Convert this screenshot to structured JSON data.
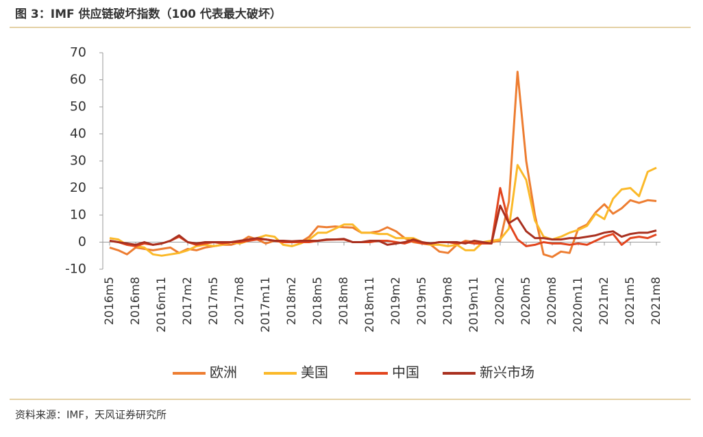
{
  "chart_data": {
    "type": "line",
    "title": "图 3：IMF 供应链破坏指数（100 代表最大破坏）",
    "source": "资料来源：IMF，天风证券研究所",
    "categories": [
      "2016m5",
      null,
      null,
      "2016m8",
      null,
      null,
      "2016m11",
      null,
      null,
      "2017m2",
      null,
      null,
      "2017m5",
      null,
      null,
      "2017m8",
      null,
      null,
      "2017m11",
      null,
      null,
      "2018m2",
      null,
      null,
      "2018m5",
      null,
      null,
      "2018m8",
      null,
      null,
      "2018m11",
      null,
      null,
      "2019m2",
      null,
      null,
      "2019m5",
      null,
      null,
      "2019m8",
      null,
      null,
      "2019m11",
      null,
      null,
      "2020m2",
      null,
      null,
      "2020m5",
      null,
      null,
      "2020m8",
      null,
      null,
      "2020m11",
      null,
      null,
      "2021m2",
      null,
      null,
      "2021m5",
      null,
      null,
      "2021m8"
    ],
    "series": [
      {
        "name": "欧洲",
        "color": "#ED7D31",
        "values": [
          -2,
          -3,
          -4.5,
          -2,
          -2.5,
          -3,
          -2.5,
          -2,
          -4,
          -2.5,
          -3,
          -2,
          -1.5,
          -1,
          -1,
          0,
          2,
          1,
          -0.5,
          0.5,
          0,
          0,
          0,
          2,
          5.8,
          5.5,
          5.8,
          5.5,
          5.4,
          3.5,
          3.5,
          4,
          5.5,
          4,
          1.5,
          0,
          -0.5,
          -1,
          -3.5,
          -4,
          -1,
          0.5,
          0,
          -0.5,
          0,
          0.5,
          15,
          63,
          30,
          10,
          -4.5,
          -5.5,
          -3.5,
          -4,
          5,
          6.5,
          11,
          14,
          10.5,
          12.5,
          15.5,
          14.5,
          15.5,
          15.2
        ]
      },
      {
        "name": "美国",
        "color": "#FBB929",
        "values": [
          1.5,
          1,
          -1,
          -1.5,
          -2,
          -4.5,
          -5,
          -4.5,
          -4,
          -3,
          -1.5,
          -1,
          -1.5,
          -1,
          0,
          -0.5,
          0.5,
          1.5,
          2.5,
          2,
          -1,
          -1.5,
          -0.5,
          1,
          3.5,
          3.5,
          5,
          6.5,
          6.5,
          3.5,
          3.5,
          3,
          3,
          1.5,
          1.5,
          1.5,
          0,
          -1,
          -1,
          -1.5,
          -1,
          -3,
          -3,
          0,
          0.5,
          1,
          5,
          28.5,
          23,
          8,
          2,
          1,
          2,
          3.5,
          4.5,
          6,
          10.5,
          8.5,
          16,
          19.5,
          20,
          17,
          26,
          27.5
        ]
      },
      {
        "name": "中国",
        "color": "#E2451E",
        "values": [
          0.5,
          0,
          -1,
          -1.5,
          -0.5,
          -1,
          -0.5,
          0.5,
          2,
          0,
          -1,
          -0.5,
          0,
          -0.5,
          0,
          0,
          0.5,
          1,
          1,
          0.5,
          0,
          0,
          0,
          0,
          0.5,
          0.8,
          1,
          1,
          0,
          0,
          0,
          0.5,
          0.5,
          0,
          -0.5,
          0.5,
          -0.5,
          -0.5,
          0,
          0,
          -0.5,
          0,
          -0.5,
          -0.5,
          -0.5,
          20,
          7,
          1,
          -1.5,
          -1,
          0,
          -0.5,
          -0.5,
          -1,
          -0.5,
          -1,
          0.5,
          2,
          3,
          -1,
          1.5,
          2,
          1.5,
          2.8
        ]
      },
      {
        "name": "新兴市场",
        "color": "#A9301F",
        "values": [
          0.5,
          0,
          -0.5,
          -1,
          0,
          -1,
          -0.5,
          0.5,
          2.5,
          0,
          -0.5,
          0,
          0,
          0,
          0,
          0.5,
          1,
          1.5,
          1,
          0.5,
          0.5,
          0.3,
          0.5,
          0.5,
          0.5,
          1,
          1,
          1.2,
          0,
          0,
          0.5,
          0.5,
          -1,
          -0.5,
          0,
          1,
          0,
          -0.5,
          0,
          0,
          0,
          -0.5,
          0.5,
          0,
          -0.5,
          13.5,
          7,
          9,
          4,
          1.5,
          1.5,
          1,
          1,
          1.5,
          1.5,
          2,
          2.5,
          3.5,
          4,
          2,
          3,
          3.5,
          3.5,
          4.3
        ]
      }
    ],
    "ylim": [
      -10,
      70
    ],
    "yticks": [
      -10,
      0,
      10,
      20,
      30,
      40,
      50,
      60,
      70
    ],
    "grid": false,
    "legend": "bottom"
  }
}
